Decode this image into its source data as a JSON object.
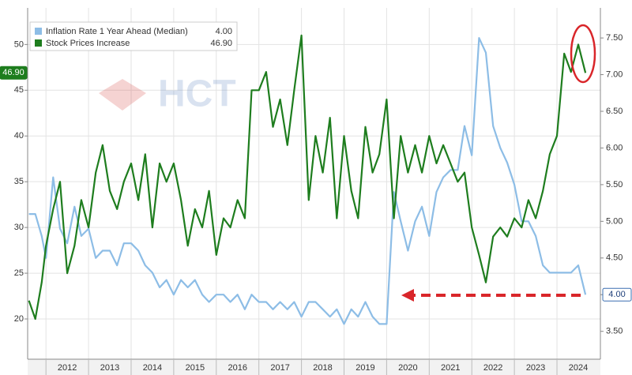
{
  "chart_data": {
    "type": "line",
    "watermark": "HCT",
    "x": [
      2011.6,
      2011.75,
      2011.9,
      2012.0,
      2012.17,
      2012.33,
      2012.5,
      2012.67,
      2012.83,
      2013.0,
      2013.17,
      2013.33,
      2013.5,
      2013.67,
      2013.83,
      2014.0,
      2014.17,
      2014.33,
      2014.5,
      2014.67,
      2014.83,
      2015.0,
      2015.17,
      2015.33,
      2015.5,
      2015.67,
      2015.83,
      2016.0,
      2016.17,
      2016.33,
      2016.5,
      2016.67,
      2016.83,
      2017.0,
      2017.17,
      2017.33,
      2017.5,
      2017.67,
      2017.83,
      2018.0,
      2018.17,
      2018.33,
      2018.5,
      2018.67,
      2018.83,
      2019.0,
      2019.17,
      2019.33,
      2019.5,
      2019.67,
      2019.83,
      2020.0,
      2020.17,
      2020.33,
      2020.5,
      2020.67,
      2020.83,
      2021.0,
      2021.17,
      2021.33,
      2021.5,
      2021.67,
      2021.83,
      2022.0,
      2022.17,
      2022.33,
      2022.5,
      2022.67,
      2022.83,
      2023.0,
      2023.17,
      2023.33,
      2023.5,
      2023.67,
      2023.83,
      2024.0,
      2024.17,
      2024.33,
      2024.5,
      2024.67
    ],
    "series": [
      {
        "name": "Inflation Rate 1 Year Ahead (Median)",
        "color": "#8dbde6",
        "axis": "y2",
        "last_value_label": "4.00",
        "values": [
          5.1,
          5.1,
          4.8,
          4.5,
          5.6,
          4.9,
          4.7,
          5.2,
          4.8,
          4.9,
          4.5,
          4.6,
          4.6,
          4.4,
          4.7,
          4.7,
          4.6,
          4.4,
          4.3,
          4.1,
          4.2,
          4.0,
          4.2,
          4.1,
          4.2,
          4.0,
          3.9,
          4.0,
          4.0,
          3.9,
          4.0,
          3.8,
          4.0,
          3.9,
          3.9,
          3.8,
          3.9,
          3.8,
          3.9,
          3.7,
          3.9,
          3.9,
          3.8,
          3.7,
          3.8,
          3.6,
          3.8,
          3.7,
          3.9,
          3.7,
          3.6,
          3.6,
          5.4,
          5.0,
          4.6,
          5.0,
          5.2,
          4.8,
          5.4,
          5.6,
          5.7,
          5.7,
          6.3,
          5.9,
          7.5,
          7.3,
          6.3,
          6.0,
          5.8,
          5.5,
          5.0,
          5.0,
          4.8,
          4.4,
          4.3,
          4.3,
          4.3,
          4.3,
          4.4,
          4.0
        ]
      },
      {
        "name": "Stock Prices Increase",
        "color": "#1e7d1e",
        "last_value_label": "46.90",
        "values": [
          22,
          20,
          24,
          28,
          32,
          35,
          25,
          28,
          33,
          30,
          36,
          39,
          34,
          32,
          35,
          37,
          33,
          38,
          30,
          37,
          35,
          37,
          33,
          28,
          32,
          30,
          34,
          27,
          31,
          30,
          33,
          31,
          45,
          45,
          47,
          41,
          44,
          39,
          45,
          51,
          33,
          40,
          36,
          42,
          31,
          40,
          34,
          31,
          41,
          36,
          38,
          44,
          31,
          40,
          36,
          39,
          36,
          40,
          37,
          39,
          37,
          35,
          36,
          30,
          27,
          24,
          29,
          30,
          29,
          31,
          30,
          33,
          31,
          34,
          38,
          40,
          49,
          47,
          50,
          46.9
        ]
      }
    ],
    "xlim": [
      2011.57,
      2025.02
    ],
    "xticks": [
      {
        "value": 2012,
        "label": "2012"
      },
      {
        "value": 2013,
        "label": "2013"
      },
      {
        "value": 2014,
        "label": "2014"
      },
      {
        "value": 2015,
        "label": "2015"
      },
      {
        "value": 2016,
        "label": "2016"
      },
      {
        "value": 2017,
        "label": "2017"
      },
      {
        "value": 2018,
        "label": "2018"
      },
      {
        "value": 2019,
        "label": "2019"
      },
      {
        "value": 2020,
        "label": "2020"
      },
      {
        "value": 2021,
        "label": "2021"
      },
      {
        "value": 2022,
        "label": "2022"
      },
      {
        "value": 2023,
        "label": "2023"
      },
      {
        "value": 2024,
        "label": "2024"
      }
    ],
    "ylim": [
      15.6,
      54
    ],
    "yticks": [
      20,
      25,
      30,
      35,
      40,
      45,
      50
    ],
    "y2lim": [
      3.12,
      7.91
    ],
    "y2ticks": [
      {
        "value": 3.5,
        "label": "3.50"
      },
      {
        "value": 4,
        "label": "4.00"
      },
      {
        "value": 4.5,
        "label": "4.50"
      },
      {
        "value": 5,
        "label": "5.00"
      },
      {
        "value": 5.5,
        "label": "5.50"
      },
      {
        "value": 6,
        "label": "6.00"
      },
      {
        "value": 6.5,
        "label": "6.50"
      },
      {
        "value": 7,
        "label": "7.00"
      },
      {
        "value": 7.5,
        "label": "7.50"
      }
    ],
    "grid": true
  }
}
